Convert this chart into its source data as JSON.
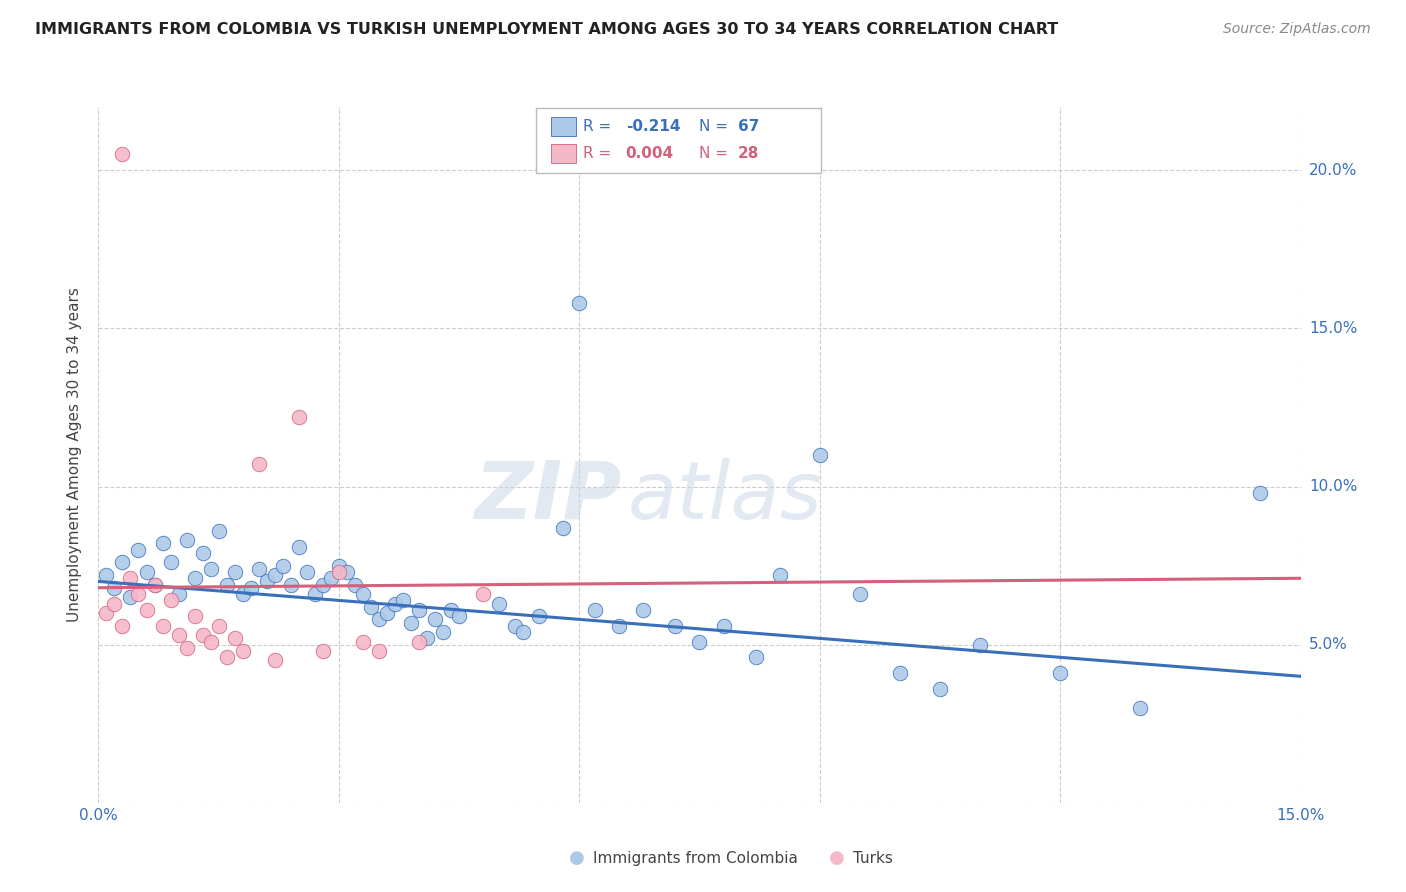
{
  "title": "IMMIGRANTS FROM COLOMBIA VS TURKISH UNEMPLOYMENT AMONG AGES 30 TO 34 YEARS CORRELATION CHART",
  "source": "Source: ZipAtlas.com",
  "ylabel": "Unemployment Among Ages 30 to 34 years",
  "xlim": [
    0.0,
    0.15
  ],
  "ylim": [
    0.0,
    0.22
  ],
  "xticks": [
    0.0,
    0.03,
    0.06,
    0.09,
    0.12,
    0.15
  ],
  "xticklabels": [
    "0.0%",
    "",
    "",
    "",
    "",
    "15.0%"
  ],
  "yticks": [
    0.0,
    0.05,
    0.1,
    0.15,
    0.2
  ],
  "yticklabels": [
    "",
    "5.0%",
    "10.0%",
    "15.0%",
    "20.0%"
  ],
  "blue_R": "-0.214",
  "blue_N": "67",
  "pink_R": "0.004",
  "pink_N": "28",
  "blue_color": "#adc9e8",
  "blue_line_color": "#3a6fba",
  "pink_color": "#f4b8c8",
  "pink_line_color": "#d4607a",
  "watermark_zip": "ZIP",
  "watermark_atlas": "atlas",
  "blue_line_start_y": 0.07,
  "blue_line_end_y": 0.04,
  "pink_line_start_y": 0.068,
  "pink_line_end_y": 0.071,
  "blue_points": [
    [
      0.001,
      0.072
    ],
    [
      0.002,
      0.068
    ],
    [
      0.003,
      0.076
    ],
    [
      0.004,
      0.065
    ],
    [
      0.005,
      0.08
    ],
    [
      0.006,
      0.073
    ],
    [
      0.007,
      0.069
    ],
    [
      0.008,
      0.082
    ],
    [
      0.009,
      0.076
    ],
    [
      0.01,
      0.066
    ],
    [
      0.011,
      0.083
    ],
    [
      0.012,
      0.071
    ],
    [
      0.013,
      0.079
    ],
    [
      0.014,
      0.074
    ],
    [
      0.015,
      0.086
    ],
    [
      0.016,
      0.069
    ],
    [
      0.017,
      0.073
    ],
    [
      0.018,
      0.066
    ],
    [
      0.019,
      0.068
    ],
    [
      0.02,
      0.074
    ],
    [
      0.021,
      0.07
    ],
    [
      0.022,
      0.072
    ],
    [
      0.023,
      0.075
    ],
    [
      0.024,
      0.069
    ],
    [
      0.025,
      0.081
    ],
    [
      0.026,
      0.073
    ],
    [
      0.027,
      0.066
    ],
    [
      0.028,
      0.069
    ],
    [
      0.029,
      0.071
    ],
    [
      0.03,
      0.075
    ],
    [
      0.031,
      0.073
    ],
    [
      0.032,
      0.069
    ],
    [
      0.033,
      0.066
    ],
    [
      0.034,
      0.062
    ],
    [
      0.035,
      0.058
    ],
    [
      0.036,
      0.06
    ],
    [
      0.037,
      0.063
    ],
    [
      0.038,
      0.064
    ],
    [
      0.039,
      0.057
    ],
    [
      0.04,
      0.061
    ],
    [
      0.041,
      0.052
    ],
    [
      0.042,
      0.058
    ],
    [
      0.043,
      0.054
    ],
    [
      0.044,
      0.061
    ],
    [
      0.045,
      0.059
    ],
    [
      0.05,
      0.063
    ],
    [
      0.052,
      0.056
    ],
    [
      0.053,
      0.054
    ],
    [
      0.055,
      0.059
    ],
    [
      0.058,
      0.087
    ],
    [
      0.06,
      0.158
    ],
    [
      0.062,
      0.061
    ],
    [
      0.065,
      0.056
    ],
    [
      0.068,
      0.061
    ],
    [
      0.072,
      0.056
    ],
    [
      0.075,
      0.051
    ],
    [
      0.078,
      0.056
    ],
    [
      0.082,
      0.046
    ],
    [
      0.085,
      0.072
    ],
    [
      0.09,
      0.11
    ],
    [
      0.095,
      0.066
    ],
    [
      0.1,
      0.041
    ],
    [
      0.105,
      0.036
    ],
    [
      0.11,
      0.05
    ],
    [
      0.12,
      0.041
    ],
    [
      0.13,
      0.03
    ],
    [
      0.145,
      0.098
    ]
  ],
  "pink_points": [
    [
      0.001,
      0.06
    ],
    [
      0.002,
      0.063
    ],
    [
      0.003,
      0.056
    ],
    [
      0.004,
      0.071
    ],
    [
      0.005,
      0.066
    ],
    [
      0.006,
      0.061
    ],
    [
      0.007,
      0.069
    ],
    [
      0.008,
      0.056
    ],
    [
      0.009,
      0.064
    ],
    [
      0.01,
      0.053
    ],
    [
      0.011,
      0.049
    ],
    [
      0.012,
      0.059
    ],
    [
      0.013,
      0.053
    ],
    [
      0.014,
      0.051
    ],
    [
      0.015,
      0.056
    ],
    [
      0.016,
      0.046
    ],
    [
      0.017,
      0.052
    ],
    [
      0.018,
      0.048
    ],
    [
      0.02,
      0.107
    ],
    [
      0.022,
      0.045
    ],
    [
      0.025,
      0.122
    ],
    [
      0.028,
      0.048
    ],
    [
      0.03,
      0.073
    ],
    [
      0.033,
      0.051
    ],
    [
      0.035,
      0.048
    ],
    [
      0.04,
      0.051
    ],
    [
      0.048,
      0.066
    ],
    [
      0.003,
      0.205
    ]
  ]
}
